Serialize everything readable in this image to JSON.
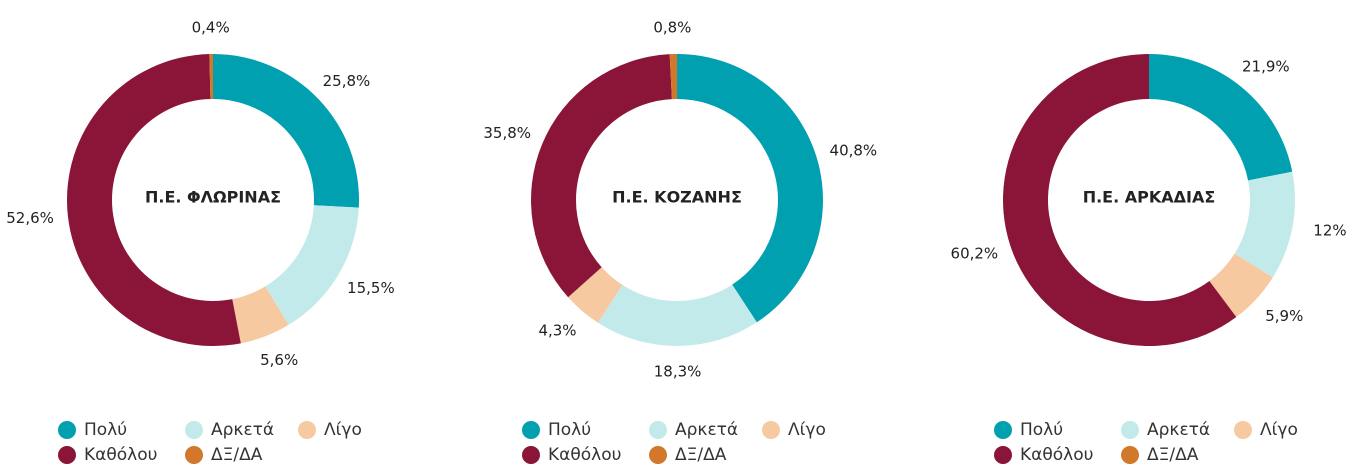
{
  "chart_data": [
    {
      "type": "donut",
      "center_label": "Π.Ε. ΦΛΩΡΙΝΑΣ",
      "categories": [
        "Πολύ",
        "Αρκετά",
        "Λίγο",
        "Καθόλου",
        "ΔΞ/ΔΑ"
      ],
      "values": [
        25.8,
        15.5,
        5.6,
        52.6,
        0.4
      ],
      "value_labels": [
        "25,8%",
        "15,5%",
        "5,6%",
        "52,6%",
        "0,4%"
      ],
      "colors": [
        "#00a0b0",
        "#c3eaea",
        "#f6c9a0",
        "#8b1538",
        "#d2782a"
      ]
    },
    {
      "type": "donut",
      "center_label": "Π.Ε. ΚΟΖΑΝΗΣ",
      "categories": [
        "Πολύ",
        "Αρκετά",
        "Λίγο",
        "Καθόλου",
        "ΔΞ/ΔΑ"
      ],
      "values": [
        40.8,
        18.3,
        4.3,
        35.8,
        0.8
      ],
      "value_labels": [
        "40,8%",
        "18,3%",
        "4,3%",
        "35,8%",
        "0,8%"
      ],
      "colors": [
        "#00a0b0",
        "#c3eaea",
        "#f6c9a0",
        "#8b1538",
        "#d2782a"
      ]
    },
    {
      "type": "donut",
      "center_label": "Π.Ε. ΑΡΚΑΔΙΑΣ",
      "categories": [
        "Πολύ",
        "Αρκετά",
        "Λίγο",
        "Καθόλου",
        "ΔΞ/ΔΑ"
      ],
      "values": [
        21.9,
        12,
        5.9,
        60.2,
        null
      ],
      "value_labels": [
        "21,9%",
        "12%",
        "5,9%",
        "60,2%",
        null
      ],
      "colors": [
        "#00a0b0",
        "#c3eaea",
        "#f6c9a0",
        "#8b1538",
        "#d2782a"
      ]
    }
  ]
}
